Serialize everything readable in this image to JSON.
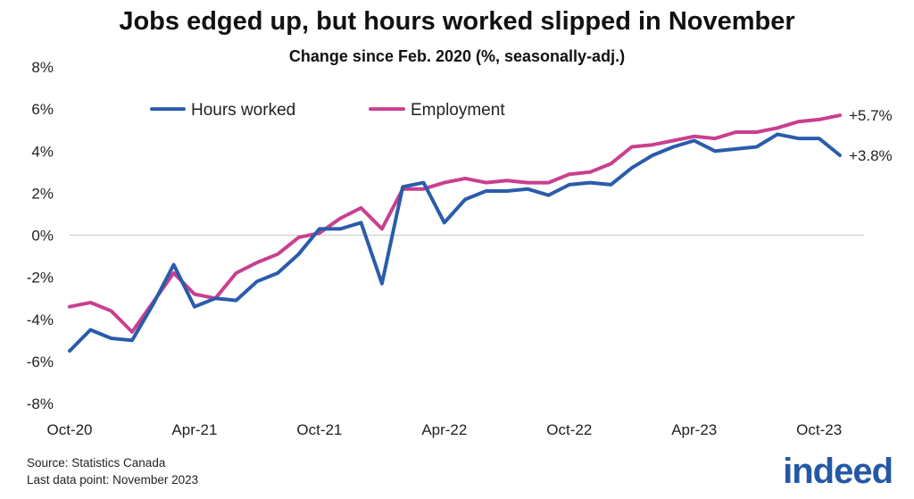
{
  "title": "Jobs edged up, but hours worked slipped in November",
  "subtitle": "Change since Feb. 2020 (%, seasonally-adj.)",
  "source": "Source: Statistics Canada",
  "last_data_point": "Last data point: November 2023",
  "logo_text": "indeed",
  "colors": {
    "hours": "#2a5cab",
    "employment": "#c93f8f",
    "zero_line": "#d0d0d0"
  },
  "chart_data": {
    "type": "line",
    "title": "Jobs edged up, but hours worked slipped in November",
    "subtitle": "Change since Feb. 2020 (%, seasonally-adj.)",
    "ylim": [
      -8,
      8
    ],
    "y_ticks": [
      "-8%",
      "-6%",
      "-4%",
      "-2%",
      "0%",
      "2%",
      "4%",
      "6%",
      "8%"
    ],
    "y_tick_values": [
      -8,
      -6,
      -4,
      -2,
      0,
      2,
      4,
      6,
      8
    ],
    "x_tick_labels": [
      "Oct-20",
      "Apr-21",
      "Oct-21",
      "Apr-22",
      "Oct-22",
      "Apr-23",
      "Oct-23"
    ],
    "x_tick_dates": [
      "2020-10",
      "2021-04",
      "2021-10",
      "2022-04",
      "2022-10",
      "2023-04",
      "2023-10"
    ],
    "x": [
      "2020-10",
      "2020-11",
      "2020-12",
      "2021-01",
      "2021-02",
      "2021-03",
      "2021-04",
      "2021-05",
      "2021-06",
      "2021-07",
      "2021-08",
      "2021-09",
      "2021-10",
      "2021-11",
      "2021-12",
      "2022-01",
      "2022-02",
      "2022-03",
      "2022-04",
      "2022-05",
      "2022-06",
      "2022-07",
      "2022-08",
      "2022-09",
      "2022-10",
      "2022-11",
      "2022-12",
      "2023-01",
      "2023-02",
      "2023-03",
      "2023-04",
      "2023-05",
      "2023-06",
      "2023-07",
      "2023-08",
      "2023-09",
      "2023-10",
      "2023-11"
    ],
    "legend": [
      "Hours worked",
      "Employment"
    ],
    "legend_position": "top-left",
    "grid": false,
    "series": [
      {
        "name": "Hours worked",
        "values": [
          -5.5,
          -4.5,
          -4.9,
          -5.0,
          -3.3,
          -1.4,
          -3.4,
          -3.0,
          -3.1,
          -2.2,
          -1.8,
          -0.9,
          0.3,
          0.3,
          0.6,
          -2.3,
          2.3,
          2.5,
          0.6,
          1.7,
          2.1,
          2.1,
          2.2,
          1.9,
          2.4,
          2.5,
          2.4,
          3.2,
          3.8,
          4.2,
          4.5,
          4.0,
          4.1,
          4.2,
          4.8,
          4.6,
          4.6,
          3.8
        ],
        "end_label": "+3.8%"
      },
      {
        "name": "Employment",
        "values": [
          -3.4,
          -3.2,
          -3.6,
          -4.6,
          -3.2,
          -1.8,
          -2.8,
          -3.0,
          -1.8,
          -1.3,
          -0.9,
          -0.1,
          0.1,
          0.8,
          1.3,
          0.3,
          2.2,
          2.2,
          2.5,
          2.7,
          2.5,
          2.6,
          2.5,
          2.5,
          2.9,
          3.0,
          3.4,
          4.2,
          4.3,
          4.5,
          4.7,
          4.6,
          4.9,
          4.9,
          5.1,
          5.4,
          5.5,
          5.7
        ],
        "end_label": "+5.7%"
      }
    ]
  }
}
